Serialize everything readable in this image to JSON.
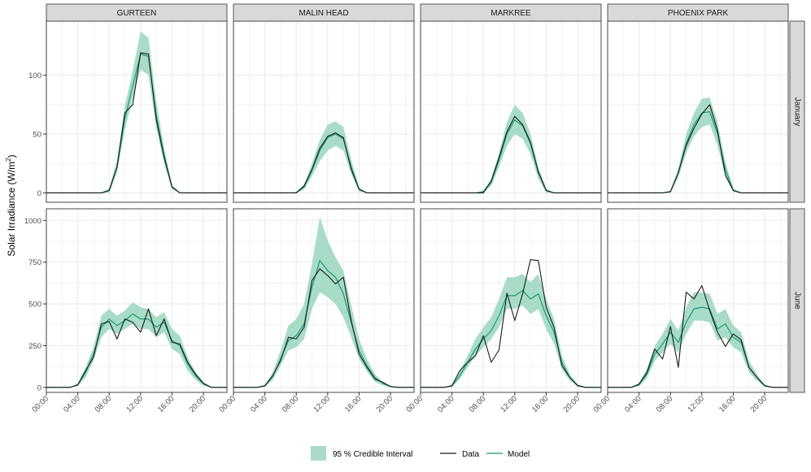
{
  "chart_data": {
    "type": "line",
    "ylabel_main": "Solar Irradiance (W/m",
    "ylabel_sup": "2",
    "ylabel_close": ")",
    "x_tick_labels": [
      "00:00",
      "04:00",
      "08:00",
      "12:00",
      "16:00",
      "20:00"
    ],
    "x_tick_hours": [
      0,
      4,
      8,
      12,
      16,
      20
    ],
    "x_range_hours": [
      0,
      23
    ],
    "hours": [
      0,
      1,
      2,
      3,
      4,
      5,
      6,
      7,
      8,
      9,
      10,
      11,
      12,
      13,
      14,
      15,
      16,
      17,
      18,
      19,
      20,
      21,
      22,
      23
    ],
    "stations": [
      "GURTEEN",
      "MALIN HEAD",
      "MARKREE",
      "PHOENIX PARK"
    ],
    "months": [
      "January",
      "June"
    ],
    "y_axes": {
      "January": {
        "ylim": [
          -8,
          146
        ],
        "ticks": [
          0,
          50,
          100
        ],
        "tick_labels": [
          "0",
          "50",
          "100"
        ]
      },
      "June": {
        "ylim": [
          -30,
          1070
        ],
        "ticks": [
          0,
          250,
          500,
          750,
          1000
        ],
        "tick_labels": [
          "0",
          "250",
          "500",
          "750",
          "1000"
        ]
      }
    },
    "legend": {
      "ribbon_label": "95 % Credible Interval",
      "data_label": "Data",
      "model_label": "Model"
    },
    "colors": {
      "ribbon": "#a8dcc6",
      "model": "#17987a",
      "data": "#1a1a1a",
      "strip": "#d9d9d9",
      "grid": "#ebebeb"
    },
    "panels": {
      "January": {
        "GURTEEN": {
          "data": [
            0,
            0,
            0,
            0,
            0,
            0,
            0,
            0,
            2,
            22,
            68,
            75,
            119,
            118,
            62,
            30,
            5,
            0,
            0,
            0,
            0,
            0,
            0,
            0
          ],
          "model": [
            0,
            0,
            0,
            0,
            0,
            0,
            0,
            0,
            2,
            22,
            63,
            91,
            118,
            116,
            66,
            32,
            5,
            0,
            0,
            0,
            0,
            0,
            0,
            0
          ],
          "lower": [
            0,
            0,
            0,
            0,
            0,
            0,
            0,
            0,
            0,
            17,
            54,
            80,
            105,
            100,
            55,
            25,
            3,
            0,
            0,
            0,
            0,
            0,
            0,
            0
          ],
          "upper": [
            0,
            0,
            0,
            0,
            0,
            0,
            0,
            0,
            4,
            28,
            74,
            104,
            137,
            132,
            78,
            38,
            7,
            0,
            0,
            0,
            0,
            0,
            0,
            0
          ]
        },
        "MALIN HEAD": {
          "data": [
            0,
            0,
            0,
            0,
            0,
            0,
            0,
            0,
            0,
            6,
            20,
            38,
            48,
            51,
            47,
            20,
            3,
            0,
            0,
            0,
            0,
            0,
            0,
            0
          ],
          "model": [
            0,
            0,
            0,
            0,
            0,
            0,
            0,
            0,
            0,
            5,
            19,
            36,
            47,
            50,
            46,
            22,
            3,
            0,
            0,
            0,
            0,
            0,
            0,
            0
          ],
          "lower": [
            0,
            0,
            0,
            0,
            0,
            0,
            0,
            0,
            0,
            3,
            14,
            27,
            36,
            40,
            36,
            16,
            1,
            0,
            0,
            0,
            0,
            0,
            0,
            0
          ],
          "upper": [
            0,
            0,
            0,
            0,
            0,
            0,
            0,
            0,
            1,
            7,
            25,
            45,
            58,
            61,
            56,
            28,
            5,
            0,
            0,
            0,
            0,
            0,
            0,
            0
          ]
        },
        "MARKREE": {
          "data": [
            0,
            0,
            0,
            0,
            0,
            0,
            0,
            0,
            0,
            10,
            30,
            52,
            65,
            58,
            43,
            18,
            2,
            0,
            0,
            0,
            0,
            0,
            0,
            0
          ],
          "model": [
            0,
            0,
            0,
            0,
            0,
            0,
            0,
            0,
            1,
            9,
            28,
            50,
            62,
            57,
            42,
            17,
            2,
            0,
            0,
            0,
            0,
            0,
            0,
            0
          ],
          "lower": [
            0,
            0,
            0,
            0,
            0,
            0,
            0,
            0,
            0,
            6,
            22,
            40,
            50,
            46,
            33,
            12,
            0,
            0,
            0,
            0,
            0,
            0,
            0,
            0
          ],
          "upper": [
            0,
            0,
            0,
            0,
            0,
            0,
            0,
            0,
            2,
            12,
            34,
            60,
            75,
            68,
            50,
            22,
            4,
            0,
            0,
            0,
            0,
            0,
            0,
            0
          ]
        },
        "PHOENIX PARK": {
          "data": [
            0,
            0,
            0,
            0,
            0,
            0,
            0,
            0,
            1,
            17,
            40,
            55,
            67,
            75,
            53,
            15,
            2,
            0,
            0,
            0,
            0,
            0,
            0,
            0
          ],
          "model": [
            0,
            0,
            0,
            0,
            0,
            0,
            0,
            0,
            1,
            17,
            42,
            58,
            68,
            69,
            50,
            20,
            2,
            0,
            0,
            0,
            0,
            0,
            0,
            0
          ],
          "lower": [
            0,
            0,
            0,
            0,
            0,
            0,
            0,
            0,
            0,
            13,
            34,
            48,
            56,
            58,
            40,
            14,
            1,
            0,
            0,
            0,
            0,
            0,
            0,
            0
          ],
          "upper": [
            0,
            0,
            0,
            0,
            0,
            0,
            0,
            0,
            2,
            21,
            50,
            68,
            80,
            81,
            60,
            26,
            4,
            0,
            0,
            0,
            0,
            0,
            0,
            0
          ]
        }
      },
      "June": {
        "GURTEEN": {
          "data": [
            0,
            0,
            0,
            0,
            15,
            100,
            180,
            380,
            395,
            290,
            410,
            390,
            330,
            470,
            310,
            410,
            270,
            260,
            150,
            80,
            25,
            0,
            0,
            0
          ],
          "model": [
            0,
            0,
            0,
            0,
            15,
            90,
            200,
            360,
            410,
            370,
            400,
            440,
            410,
            410,
            360,
            390,
            280,
            250,
            140,
            70,
            20,
            0,
            0,
            0
          ],
          "lower": [
            0,
            0,
            0,
            0,
            8,
            60,
            160,
            300,
            350,
            320,
            350,
            380,
            350,
            350,
            300,
            330,
            230,
            200,
            100,
            45,
            10,
            0,
            0,
            0
          ],
          "upper": [
            0,
            0,
            0,
            0,
            25,
            120,
            240,
            430,
            470,
            430,
            460,
            510,
            480,
            470,
            420,
            450,
            350,
            310,
            180,
            90,
            30,
            0,
            0,
            0
          ]
        },
        "MALIN HEAD": {
          "data": [
            0,
            0,
            0,
            0,
            10,
            70,
            160,
            300,
            290,
            360,
            640,
            710,
            670,
            620,
            660,
            400,
            200,
            120,
            50,
            30,
            5,
            0,
            0,
            0
          ],
          "model": [
            0,
            0,
            0,
            0,
            8,
            65,
            170,
            280,
            310,
            380,
            600,
            760,
            700,
            660,
            560,
            390,
            220,
            130,
            60,
            25,
            5,
            0,
            0,
            0
          ],
          "lower": [
            0,
            0,
            0,
            0,
            3,
            45,
            130,
            220,
            240,
            290,
            470,
            570,
            540,
            500,
            420,
            300,
            170,
            95,
            35,
            12,
            1,
            0,
            0,
            0
          ],
          "upper": [
            0,
            0,
            0,
            0,
            15,
            90,
            220,
            370,
            410,
            500,
            740,
            1020,
            880,
            780,
            700,
            490,
            290,
            170,
            80,
            35,
            10,
            0,
            0,
            0
          ]
        },
        "MARKREE": {
          "data": [
            0,
            0,
            0,
            0,
            10,
            100,
            150,
            190,
            310,
            150,
            225,
            565,
            400,
            560,
            765,
            760,
            480,
            360,
            130,
            60,
            10,
            0,
            0,
            0
          ],
          "model": [
            0,
            0,
            0,
            0,
            8,
            70,
            150,
            230,
            290,
            340,
            430,
            550,
            550,
            580,
            530,
            560,
            430,
            330,
            150,
            60,
            12,
            0,
            0,
            0
          ],
          "lower": [
            0,
            0,
            0,
            0,
            3,
            50,
            120,
            190,
            240,
            290,
            360,
            470,
            470,
            490,
            440,
            470,
            350,
            260,
            110,
            40,
            5,
            0,
            0,
            0
          ],
          "upper": [
            0,
            0,
            0,
            0,
            15,
            95,
            190,
            290,
            360,
            420,
            530,
            660,
            660,
            680,
            630,
            680,
            530,
            410,
            190,
            80,
            20,
            0,
            0,
            0
          ]
        },
        "PHOENIX PARK": {
          "data": [
            0,
            0,
            0,
            0,
            20,
            90,
            230,
            170,
            365,
            120,
            570,
            530,
            610,
            460,
            330,
            245,
            320,
            285,
            120,
            60,
            10,
            0,
            0,
            0
          ],
          "model": [
            0,
            0,
            0,
            0,
            15,
            80,
            200,
            260,
            330,
            270,
            390,
            470,
            480,
            470,
            350,
            380,
            300,
            270,
            120,
            60,
            10,
            0,
            0,
            0
          ],
          "lower": [
            0,
            0,
            0,
            0,
            8,
            55,
            160,
            210,
            260,
            210,
            320,
            400,
            400,
            390,
            280,
            300,
            240,
            210,
            90,
            40,
            3,
            0,
            0,
            0
          ],
          "upper": [
            0,
            0,
            0,
            0,
            25,
            110,
            250,
            320,
            410,
            340,
            480,
            570,
            570,
            560,
            440,
            470,
            370,
            330,
            160,
            80,
            18,
            0,
            0,
            0
          ]
        }
      }
    }
  }
}
